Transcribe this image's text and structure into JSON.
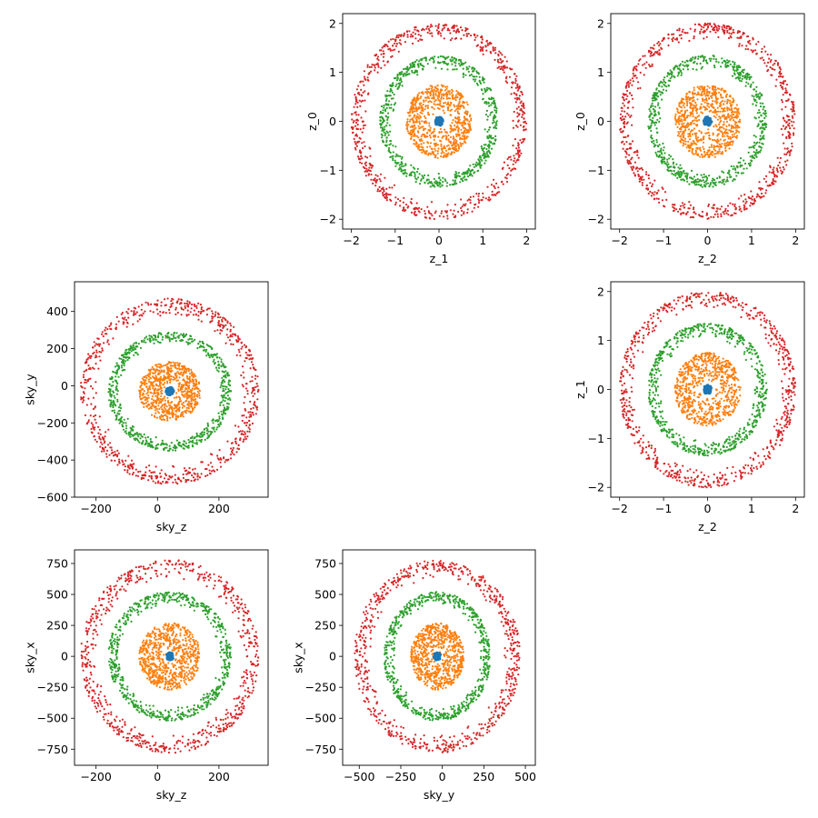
{
  "chart_data": [
    {
      "id": "z1_vs_z0",
      "type": "scatter",
      "xlabel": "z_1",
      "ylabel": "z_0",
      "xlim": [
        -2.2,
        2.2
      ],
      "ylim": [
        -2.2,
        2.2
      ],
      "xticks": [
        -2,
        -1,
        0,
        1,
        2
      ],
      "yticks": [
        -2,
        -1,
        0,
        1,
        2
      ],
      "x_center": 0,
      "y_center": 0,
      "series": [
        {
          "color": "#d62728",
          "r_min": 1.65,
          "r_max": 2.0,
          "center_offset": [
            0,
            0
          ],
          "count": 700
        },
        {
          "color": "#2ca02c",
          "r_min": 1.05,
          "r_max": 1.35,
          "center_offset": [
            0,
            0
          ],
          "count": 650
        },
        {
          "color": "#ff7f0e",
          "r_min": 0.15,
          "r_max": 0.75,
          "center_offset": [
            0,
            0
          ],
          "count": 700
        },
        {
          "color": "#1f77b4",
          "r_min": 0,
          "r_max": 0.09,
          "center_offset": [
            0,
            0
          ],
          "count": 60
        }
      ]
    },
    {
      "id": "z2_vs_z0",
      "type": "scatter",
      "xlabel": "z_2",
      "ylabel": "z_0",
      "xlim": [
        -2.2,
        2.2
      ],
      "ylim": [
        -2.2,
        2.2
      ],
      "xticks": [
        -2,
        -1,
        0,
        1,
        2
      ],
      "yticks": [
        -2,
        -1,
        0,
        1,
        2
      ],
      "series": [
        {
          "color": "#d62728",
          "r_min": 1.65,
          "r_max": 2.0,
          "center_offset": [
            0,
            0
          ],
          "count": 700
        },
        {
          "color": "#2ca02c",
          "r_min": 1.05,
          "r_max": 1.35,
          "center_offset": [
            0,
            0
          ],
          "count": 650
        },
        {
          "color": "#ff7f0e",
          "r_min": 0.15,
          "r_max": 0.75,
          "center_offset": [
            0,
            0
          ],
          "count": 700
        },
        {
          "color": "#1f77b4",
          "r_min": 0,
          "r_max": 0.09,
          "center_offset": [
            0,
            0
          ],
          "count": 60
        }
      ]
    },
    {
      "id": "skyz_vs_skyy",
      "type": "scatter",
      "xlabel": "sky_z",
      "ylabel": "sky_y",
      "xlim": [
        -270,
        360
      ],
      "ylim": [
        -600,
        560
      ],
      "xticks": [
        -200,
        0,
        200
      ],
      "yticks": [
        -600,
        -400,
        -200,
        0,
        200,
        400
      ],
      "series": [
        {
          "color": "#d62728",
          "r_min": 0.8,
          "r_max": 1.0,
          "center": [
            40,
            -30
          ],
          "scale": [
            290,
            500
          ],
          "count": 700
        },
        {
          "color": "#2ca02c",
          "r_min": 0.8,
          "r_max": 1.0,
          "center": [
            40,
            -30
          ],
          "scale": [
            200,
            320
          ],
          "count": 650
        },
        {
          "color": "#ff7f0e",
          "r_min": 0.15,
          "r_max": 1.0,
          "center": [
            40,
            -30
          ],
          "scale": [
            100,
            160
          ],
          "count": 700
        },
        {
          "color": "#1f77b4",
          "r_min": 0,
          "r_max": 1.0,
          "center": [
            40,
            -30
          ],
          "scale": [
            12,
            22
          ],
          "count": 60
        }
      ]
    },
    {
      "id": "z2_vs_z1",
      "type": "scatter",
      "xlabel": "z_2",
      "ylabel": "z_1",
      "xlim": [
        -2.2,
        2.2
      ],
      "ylim": [
        -2.2,
        2.2
      ],
      "xticks": [
        -2,
        -1,
        0,
        1,
        2
      ],
      "yticks": [
        -2,
        -1,
        0,
        1,
        2
      ],
      "series": [
        {
          "color": "#d62728",
          "r_min": 1.65,
          "r_max": 2.0,
          "center_offset": [
            0,
            0
          ],
          "count": 700
        },
        {
          "color": "#2ca02c",
          "r_min": 1.05,
          "r_max": 1.35,
          "center_offset": [
            0,
            0
          ],
          "count": 650
        },
        {
          "color": "#ff7f0e",
          "r_min": 0.15,
          "r_max": 0.75,
          "center_offset": [
            0,
            0
          ],
          "count": 700
        },
        {
          "color": "#1f77b4",
          "r_min": 0,
          "r_max": 0.09,
          "center_offset": [
            0,
            0
          ],
          "count": 60
        }
      ]
    },
    {
      "id": "skyz_vs_skyx",
      "type": "scatter",
      "xlabel": "sky_z",
      "ylabel": "sky_x",
      "xlim": [
        -270,
        360
      ],
      "ylim": [
        -880,
        860
      ],
      "xticks": [
        -200,
        0,
        200
      ],
      "yticks": [
        -750,
        -500,
        -250,
        0,
        250,
        500,
        750
      ],
      "series": [
        {
          "color": "#d62728",
          "r_min": 0.8,
          "r_max": 1.0,
          "center": [
            40,
            0
          ],
          "scale": [
            290,
            780
          ],
          "count": 700
        },
        {
          "color": "#2ca02c",
          "r_min": 0.8,
          "r_max": 1.0,
          "center": [
            40,
            0
          ],
          "scale": [
            200,
            520
          ],
          "count": 650
        },
        {
          "color": "#ff7f0e",
          "r_min": 0.15,
          "r_max": 1.0,
          "center": [
            40,
            0
          ],
          "scale": [
            100,
            270
          ],
          "count": 700
        },
        {
          "color": "#1f77b4",
          "r_min": 0,
          "r_max": 1.0,
          "center": [
            40,
            0
          ],
          "scale": [
            12,
            30
          ],
          "count": 60
        }
      ]
    },
    {
      "id": "skyy_vs_skyx",
      "type": "scatter",
      "xlabel": "sky_y",
      "ylabel": "sky_x",
      "xlim": [
        -600,
        560
      ],
      "ylim": [
        -880,
        860
      ],
      "xticks": [
        -500,
        -250,
        0,
        250,
        500
      ],
      "yticks": [
        -750,
        -500,
        -250,
        0,
        250,
        500,
        750
      ],
      "series": [
        {
          "color": "#d62728",
          "r_min": 0.8,
          "r_max": 1.0,
          "center": [
            -30,
            0
          ],
          "scale": [
            500,
            780
          ],
          "count": 700
        },
        {
          "color": "#2ca02c",
          "r_min": 0.8,
          "r_max": 1.0,
          "center": [
            -30,
            0
          ],
          "scale": [
            320,
            520
          ],
          "count": 650
        },
        {
          "color": "#ff7f0e",
          "r_min": 0.15,
          "r_max": 1.0,
          "center": [
            -30,
            0
          ],
          "scale": [
            160,
            270
          ],
          "count": 700
        },
        {
          "color": "#1f77b4",
          "r_min": 0,
          "r_max": 1.0,
          "center": [
            -30,
            0
          ],
          "scale": [
            22,
            30
          ],
          "count": 60
        }
      ]
    }
  ]
}
